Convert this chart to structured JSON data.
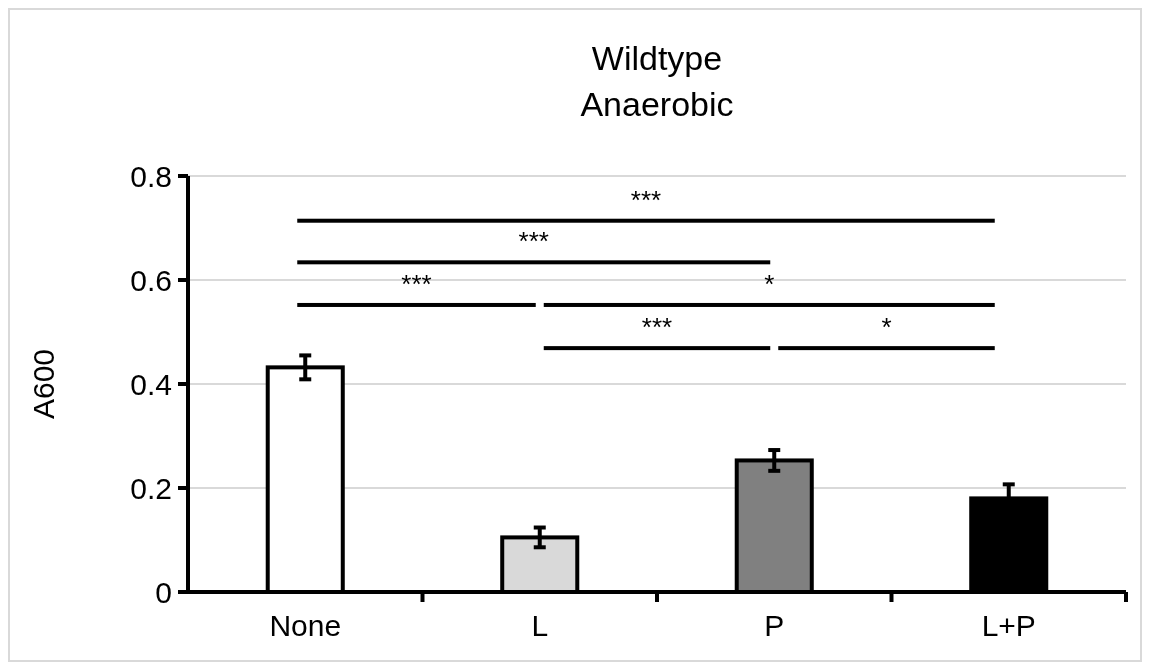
{
  "chart_data": {
    "type": "bar",
    "title": "Wildtype\nAnaerobic",
    "ylabel": "A600",
    "categories": [
      "None",
      "L",
      "P",
      "L+P"
    ],
    "values": [
      0.432,
      0.105,
      0.253,
      0.18
    ],
    "errors": [
      0.023,
      0.019,
      0.02,
      0.027
    ],
    "colors": [
      "#ffffff",
      "#d9d9d9",
      "#808080",
      "#000000"
    ],
    "ylim": [
      0,
      0.8
    ],
    "yticks": [
      0,
      {
        "value": 0.2,
        "label": "0.2"
      },
      {
        "value": 0.4,
        "label": "0.4"
      },
      {
        "value": 0.6,
        "label": "0.6"
      },
      {
        "value": 0.8,
        "label": "0.8"
      }
    ],
    "grid": "y",
    "annotations": [
      "***",
      "***",
      "***",
      "*",
      "***",
      "*"
    ]
  }
}
